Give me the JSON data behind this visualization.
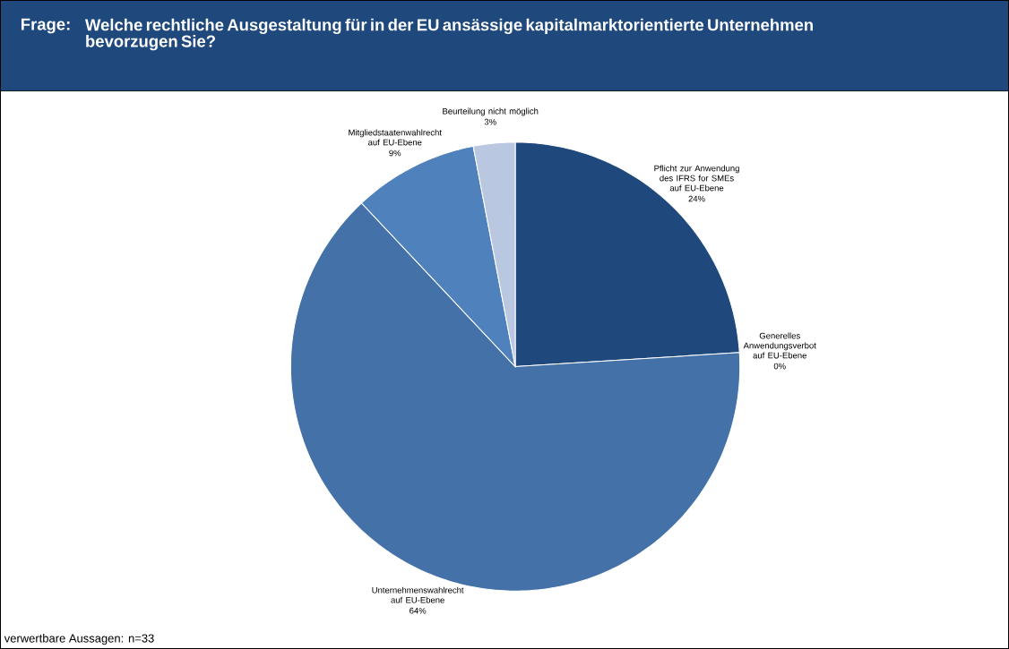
{
  "chart_data": {
    "type": "pie",
    "title": "Frage:",
    "subtitle": "Welche rechtliche Ausgestaltung für in der EU ansässige kapitalmarktorientierte Unternehmen bevorzugen Sie?",
    "categories": [
      "Pflicht zur Anwendung des IFRS for SMEs auf EU-Ebene",
      "Generelles Anwendungsverbot auf EU-Ebene",
      "Unternehmenswahlrecht auf EU-Ebene",
      "Mitgliedstaatenwahlrecht auf EU-Ebene",
      "Beurteilung nicht möglich"
    ],
    "values": [
      24,
      0,
      64,
      9,
      3
    ],
    "value_labels": [
      "24%",
      "0%",
      "64%",
      "9%",
      "3%"
    ],
    "colors": [
      "#1f497d",
      "#4f81bd",
      "#4472a8",
      "#4f81bd",
      "#b9c7e0"
    ],
    "annotations": [
      "verwertbare Aussagen: n=33"
    ]
  }
}
